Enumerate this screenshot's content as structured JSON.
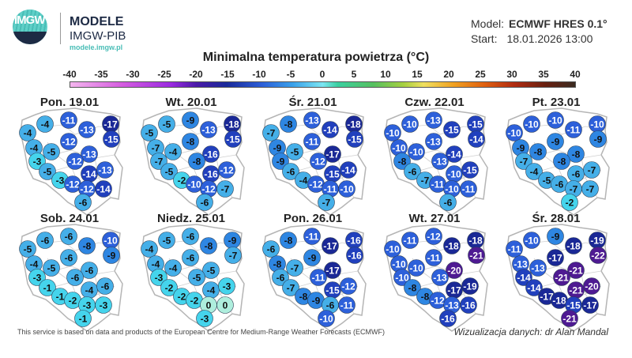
{
  "header": {
    "logo_text": "IMGW",
    "brand": "MODELE",
    "org": "IMGW-PIB",
    "url": "modele.imgw.pl",
    "model_label": "Model:",
    "model_value": "ECMWF HRES 0.1°",
    "start_label": "Start:",
    "start_value": "18.01.2026 13:00"
  },
  "title": "Minimalna temperatura powietrza (°C)",
  "scale": {
    "ticks": [
      "-40",
      "-35",
      "-30",
      "-25",
      "-20",
      "-15",
      "-10",
      "-5",
      "0",
      "5",
      "10",
      "15",
      "20",
      "25",
      "30",
      "35",
      "40"
    ],
    "min": -40,
    "max": 40
  },
  "maps": [
    {
      "label": "Pon. 19.01",
      "values": [
        -4,
        -11,
        -17,
        -4,
        -13,
        -15,
        -12,
        -4,
        -5,
        -13,
        -3,
        -12,
        -5,
        -14,
        -13,
        -3,
        -12,
        -12,
        -14,
        -6
      ]
    },
    {
      "label": "Wt. 20.01",
      "values": [
        -5,
        -9,
        -18,
        -5,
        -13,
        -15,
        -8,
        -7,
        -4,
        -16,
        -7,
        -8,
        -5,
        -16,
        -12,
        -2,
        -10,
        -12,
        -7,
        -6
      ]
    },
    {
      "label": "Śr. 21.01",
      "values": [
        -8,
        -13,
        -18,
        -7,
        -14,
        -15,
        -11,
        -9,
        -5,
        -17,
        -9,
        -12,
        -6,
        -15,
        -14,
        -4,
        -12,
        -11,
        -10,
        -7
      ]
    },
    {
      "label": "Czw. 22.01",
      "values": [
        -10,
        -13,
        -15,
        -10,
        -15,
        -14,
        -13,
        -10,
        -10,
        -14,
        -8,
        -13,
        -6,
        -10,
        -15,
        -7,
        -11,
        -10,
        -11,
        -6
      ]
    },
    {
      "label": "Pt. 23.01",
      "values": [
        -10,
        -10,
        -10,
        -10,
        -11,
        -9,
        -9,
        -9,
        -8,
        -8,
        -7,
        -8,
        -4,
        -6,
        -7,
        -5,
        -6,
        -7,
        -7,
        -2
      ]
    },
    {
      "label": "Sob. 24.01",
      "values": [
        -6,
        -6,
        -10,
        -5,
        -8,
        -9,
        -6,
        -4,
        -5,
        -6,
        -3,
        -6,
        -1,
        -4,
        -6,
        -1,
        -2,
        -3,
        -3,
        -1
      ]
    },
    {
      "label": "Niedz. 25.01",
      "values": [
        -5,
        -6,
        -9,
        -4,
        -8,
        -7,
        -6,
        -4,
        -4,
        -5,
        -3,
        -5,
        -2,
        -4,
        -3,
        -2,
        -2,
        0,
        0,
        -3
      ]
    },
    {
      "label": "Pon. 26.01",
      "values": [
        -8,
        -11,
        -16,
        -6,
        -17,
        -16,
        -9,
        -8,
        -7,
        -17,
        -6,
        -11,
        -7,
        -15,
        -12,
        -8,
        -9,
        -6,
        -11,
        -10
      ]
    },
    {
      "label": "Wt. 27.01",
      "values": [
        -11,
        -12,
        -18,
        -10,
        -18,
        -21,
        -11,
        -10,
        -10,
        -20,
        -10,
        -13,
        -8,
        -17,
        -19,
        -8,
        -12,
        -13,
        -16,
        -16
      ]
    },
    {
      "label": "Śr. 28.01",
      "values": [
        -10,
        -9,
        -19,
        -11,
        -18,
        -22,
        -17,
        -13,
        -13,
        -21,
        -14,
        -21,
        -14,
        -21,
        -20,
        -17,
        -18,
        -15,
        -17,
        -21
      ]
    }
  ],
  "footer": {
    "source": "This service is based on data and products of the European Centre for Medium-Range Weather Forecasts (ECMWF)",
    "author": "Wizualizacja danych: dr Alan Mandal"
  }
}
